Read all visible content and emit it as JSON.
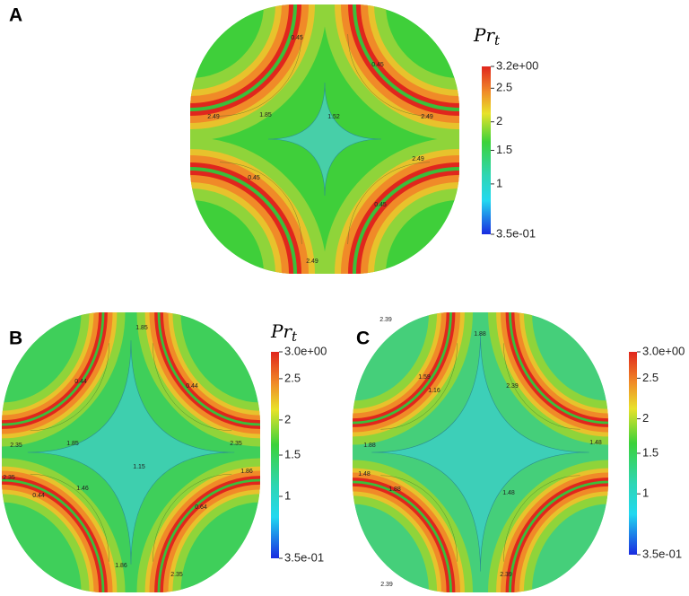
{
  "panels": [
    {
      "label": "A",
      "colorbar": {
        "title": "Pr",
        "subscript": "t",
        "ticks": [
          "3.2e+00",
          "2.5",
          "2",
          "1.5",
          "1",
          "3.5e-01"
        ]
      },
      "contour_labels": [
        "0.45",
        "0.45",
        "2.49",
        "1.85",
        "1.52",
        "2.49",
        "2.49",
        "0.45",
        "0.45",
        "2.49"
      ]
    },
    {
      "label": "B",
      "colorbar": {
        "title": "Pr",
        "subscript": "t",
        "ticks": [
          "3.0e+00",
          "2.5",
          "2",
          "1.5",
          "1",
          "3.5e-01"
        ]
      },
      "contour_labels": [
        "1.85",
        "0.44",
        "0.44",
        "2.35",
        "1.85",
        "1.15",
        "2.35",
        "1.86",
        "2.35",
        "1.46",
        "0.44",
        "0.64",
        "1.86",
        "2.35"
      ]
    },
    {
      "label": "C",
      "colorbar": {
        "ticks": [
          "3.0e+00",
          "2.5",
          "2",
          "1.5",
          "1",
          "3.5e-01"
        ]
      },
      "contour_labels": [
        "2.39",
        "1.88",
        "1.59",
        "1.16",
        "2.39",
        "1.88",
        "1.48",
        "1.48",
        "1.88",
        "1.48",
        "2.39",
        "2.39"
      ]
    }
  ]
}
